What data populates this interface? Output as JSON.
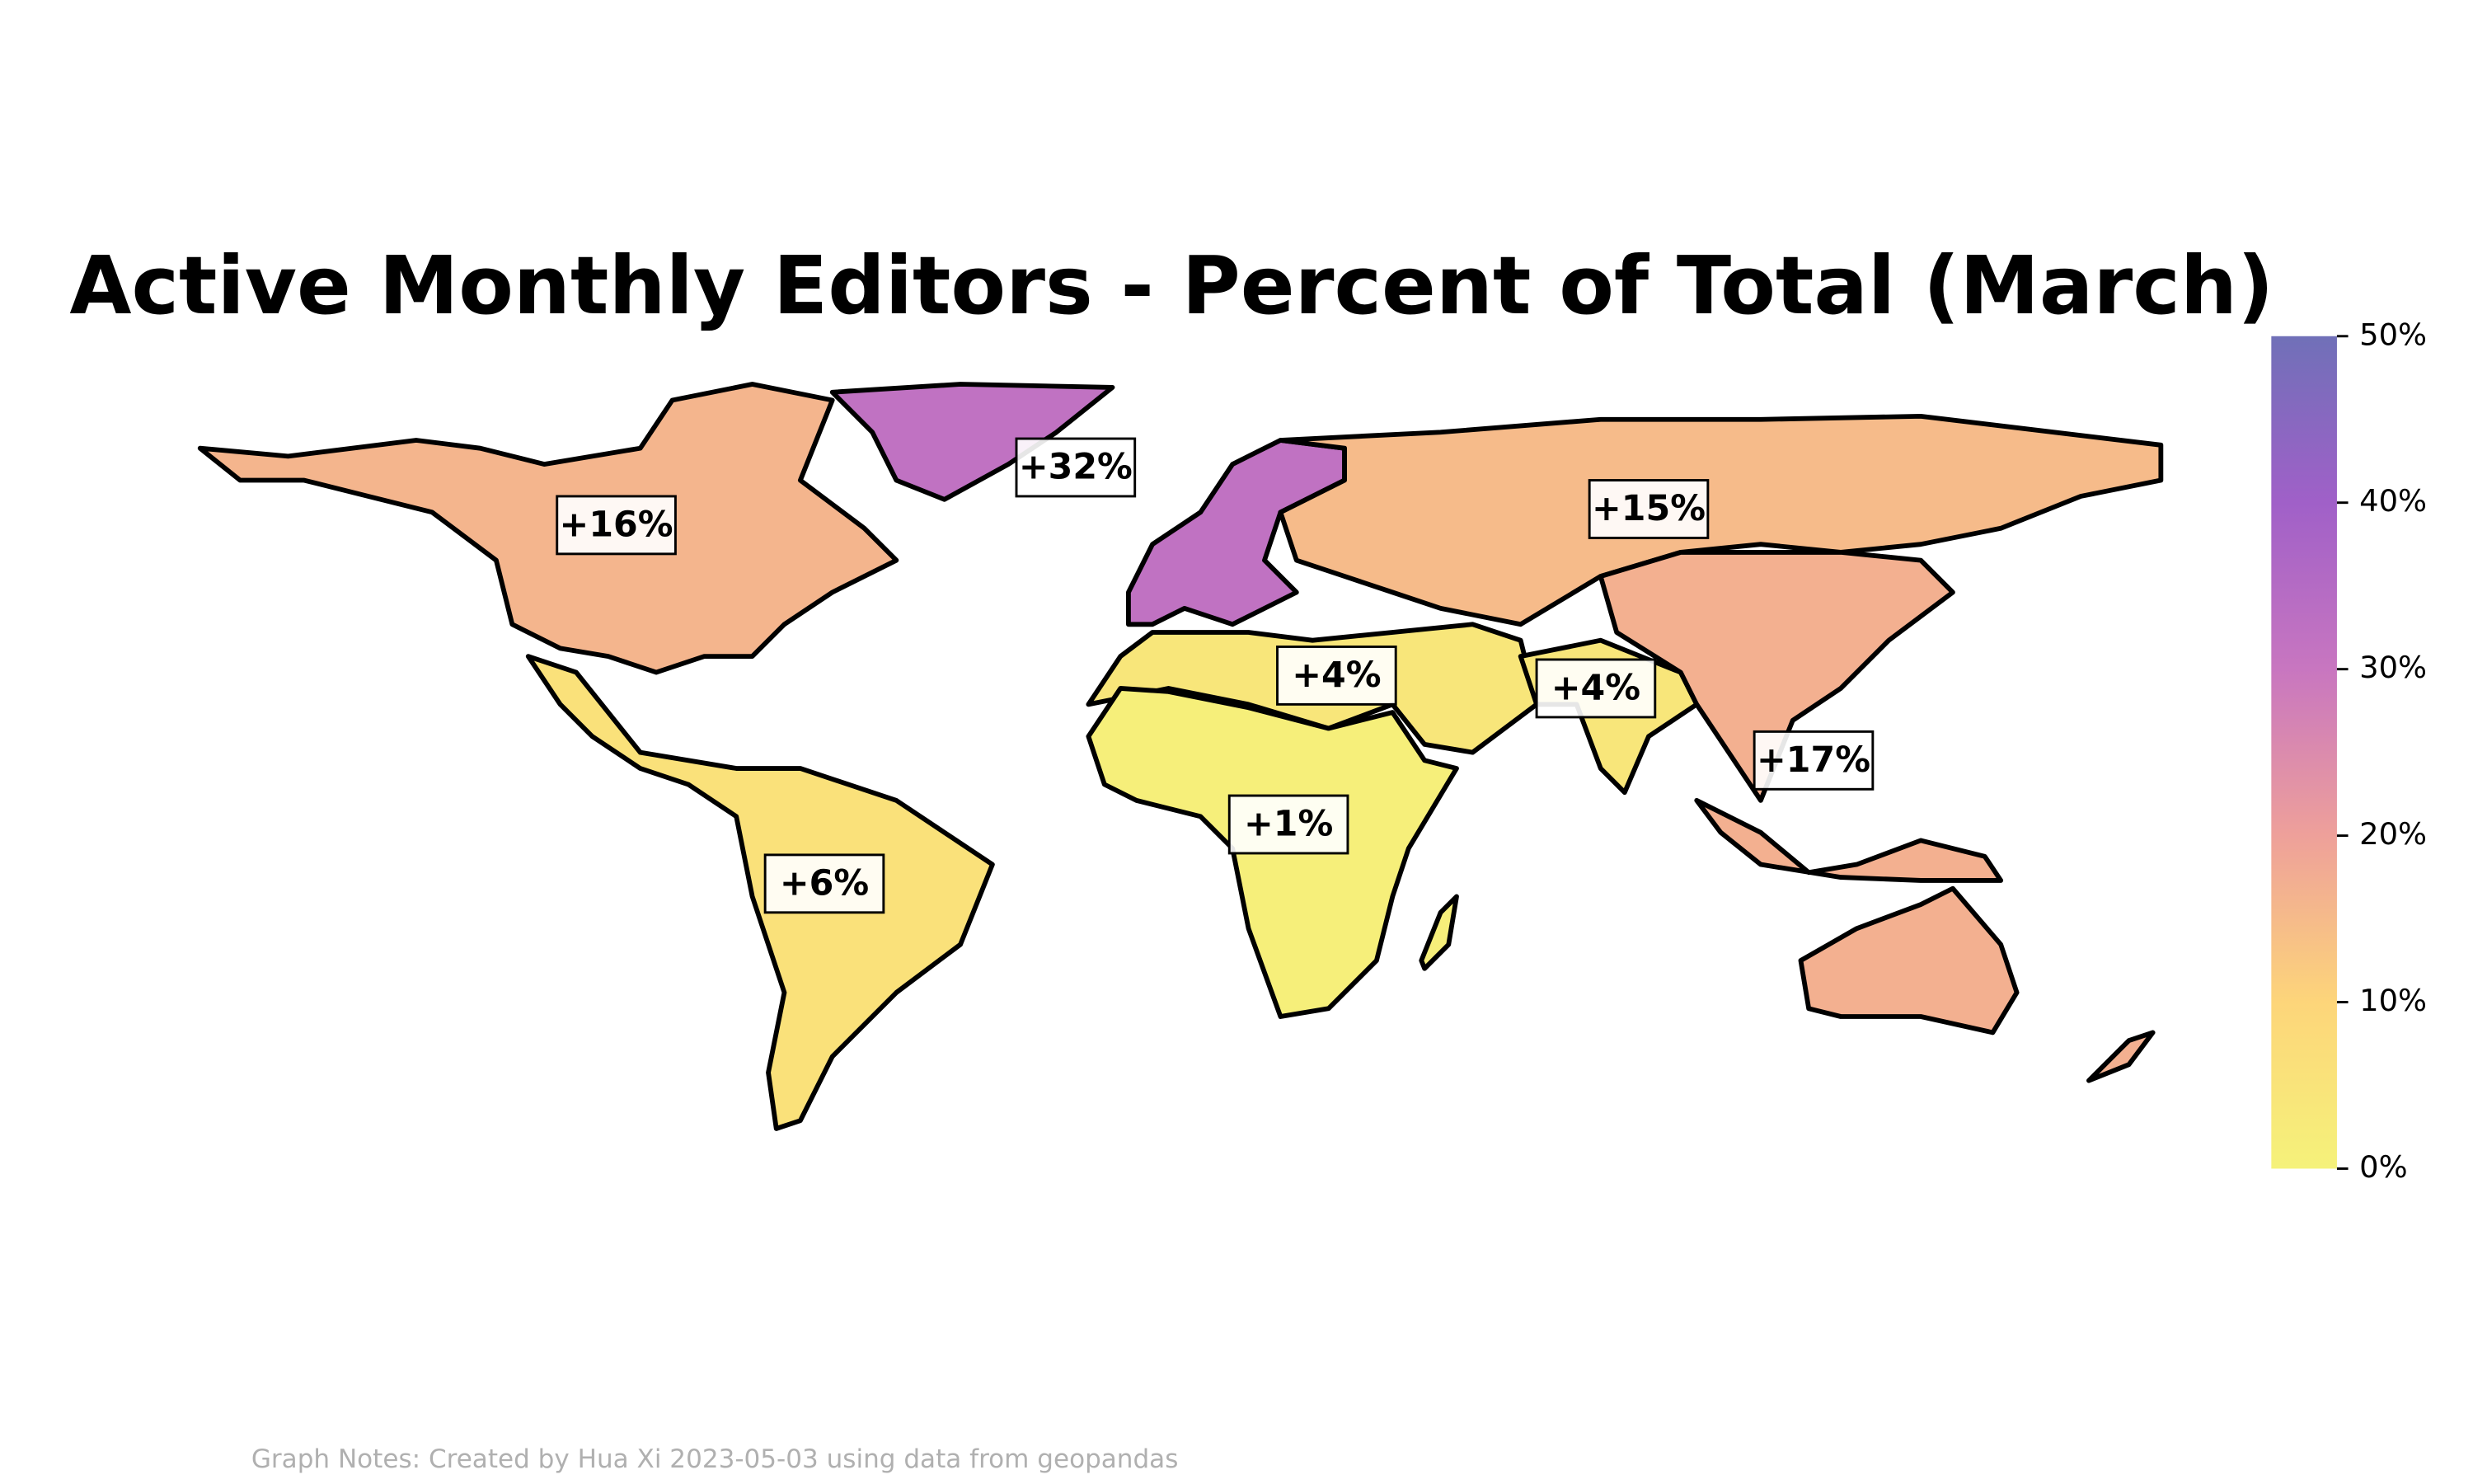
{
  "chart_data": {
    "type": "choropleth",
    "title": "Active Monthly Editors - Percent of Total (March)",
    "note": "Graph Notes: Created by Hua Xi 2023-05-03 using data from geopandas",
    "values": [
      16,
      32,
      15,
      4,
      4,
      17,
      6,
      1
    ],
    "value_labels": [
      "+16%",
      "+32%",
      "+15%",
      "+4%",
      "+4%",
      "+17%",
      "+6%",
      "+1%"
    ],
    "colormap": [
      "#f5f27a",
      "#fdd57a",
      "#eea09a",
      "#c876c0",
      "#a060c8",
      "#7070b8"
    ],
    "clim": [
      0,
      50
    ],
    "cticks": [
      {
        "value": 0,
        "label": "0%"
      },
      {
        "value": 10,
        "label": "10%"
      },
      {
        "value": 20,
        "label": "20%"
      },
      {
        "value": 30,
        "label": "30%"
      },
      {
        "value": 40,
        "label": "40%"
      },
      {
        "value": 50,
        "label": "50%"
      }
    ]
  }
}
